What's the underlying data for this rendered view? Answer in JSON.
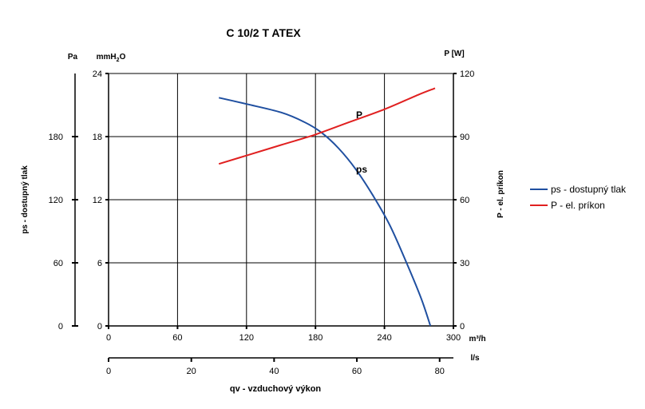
{
  "chart_data": {
    "type": "line",
    "title": "C 10/2 T ATEX",
    "xlabel": "qv - vzduchový výkon",
    "x_unit_top": "m³/h",
    "x_unit_bottom": "l/s",
    "xlim": [
      0,
      300
    ],
    "x_ticks_m3h": [
      "0",
      "60",
      "120",
      "180",
      "240",
      "300"
    ],
    "x_ticks_ls": [
      "0",
      "20",
      "40",
      "60",
      "80"
    ],
    "y_left_outer": {
      "label": "ps - dostupný tlak",
      "unit": "Pa",
      "ticks": [
        "0",
        "60",
        "120",
        "180"
      ]
    },
    "y_left_inner": {
      "unit_main": "mmH",
      "unit_sub": "2",
      "unit_tail": "O",
      "ylim": [
        0,
        24
      ],
      "ticks": [
        "0",
        "6",
        "12",
        "18",
        "24"
      ]
    },
    "y_right": {
      "label": "P - el. príkon",
      "unit": "P [W]",
      "ylim": [
        0,
        120
      ],
      "ticks": [
        "0",
        "30",
        "60",
        "90",
        "120"
      ]
    },
    "grid": true,
    "legend_position": "right",
    "series": [
      {
        "name": "ps - dostupný tlak",
        "annotation": "ps",
        "color": "#1f4fa0",
        "axis": "mmH2O",
        "x": [
          96,
          120,
          150,
          170,
          185,
          200,
          215,
          230,
          245,
          260,
          272,
          280
        ],
        "y": [
          21.7,
          21.1,
          20.3,
          19.4,
          18.4,
          16.9,
          14.9,
          12.4,
          9.5,
          5.8,
          2.6,
          0
        ]
      },
      {
        "name": "P - el. príkon",
        "annotation": "P",
        "color": "#e02020",
        "axis": "W",
        "x": [
          96,
          120,
          150,
          180,
          210,
          240,
          270,
          284
        ],
        "y": [
          77,
          81,
          86,
          91,
          97,
          103,
          110,
          113
        ]
      }
    ]
  }
}
